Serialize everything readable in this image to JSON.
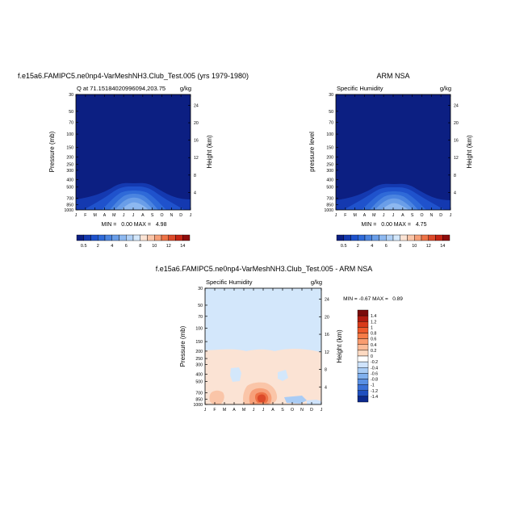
{
  "panels": [
    {
      "title": "f.e15a6.FAMIPC5.ne0np4-VarMeshNH3.Club_Test.005 (yrs 1979-1980)",
      "left_label": "Q at 71.15184020996094,203.75",
      "right_label": "g/kg",
      "ylabel_left": "Pressure (mb)",
      "ylabel_right": "Height (km)",
      "stats": "MIN =   0.00 MAX =   4.98"
    },
    {
      "title": "ARM NSA",
      "left_label": "Specific Humidity",
      "right_label": "g/kg",
      "ylabel_left": "pressure level",
      "ylabel_right": "Height (km)",
      "stats": "MIN =   0.00 MAX =   4.75"
    },
    {
      "title": "f.e15a6.FAMIPC5.ne0np4-VarMeshNH3.Club_Test.005 - ARM NSA",
      "left_label": "Specific Humidity",
      "right_label": "g/kg",
      "ylabel_left": "Pressure (mb)",
      "ylabel_right": "Height (km)",
      "stats": "MIN = -0.67 MAX =   0.89"
    }
  ],
  "chart_data": [
    {
      "type": "heatmap",
      "title": "f.e15a6.FAMIPC5.ne0np4-VarMeshNH3.Club_Test.005 (yrs 1979-1980)",
      "x": [
        "J",
        "F",
        "M",
        "A",
        "M",
        "J",
        "J",
        "A",
        "S",
        "O",
        "N",
        "D",
        "J"
      ],
      "pressure_ticks": [
        30,
        50,
        70,
        100,
        150,
        200,
        250,
        300,
        400,
        500,
        700,
        850,
        1000
      ],
      "height_ticks": [
        4,
        8,
        12,
        16,
        20,
        24
      ],
      "colorbar_labels": [
        "0.5",
        "2",
        "4",
        "6",
        "8",
        "10",
        "12",
        "14"
      ],
      "colors": [
        "#0c1f82",
        "#1439b0",
        "#1f52cc",
        "#2f6ad8",
        "#4a84e0",
        "#6a9ee8",
        "#8db8f0",
        "#b0d0f6",
        "#d3e7fb",
        "#fbe3d4",
        "#fac5a8",
        "#f7a079",
        "#ee7347",
        "#dc4a2a",
        "#c42414",
        "#8e0c0c"
      ],
      "month_max_gkg": [
        1.4,
        1.4,
        1.4,
        1.5,
        2.2,
        3.3,
        4.9,
        4.3,
        3.1,
        2.0,
        1.5,
        1.4,
        1.4
      ]
    },
    {
      "type": "heatmap",
      "title": "ARM NSA",
      "x": [
        "J",
        "F",
        "M",
        "A",
        "M",
        "J",
        "J",
        "A",
        "S",
        "O",
        "N",
        "D",
        "J"
      ],
      "pressure_ticks": [
        30,
        50,
        70,
        100,
        150,
        200,
        250,
        300,
        400,
        500,
        700,
        850,
        1000
      ],
      "height_ticks": [
        4,
        8,
        12,
        16,
        20,
        24
      ],
      "colorbar_labels": [
        "0.5",
        "2",
        "4",
        "6",
        "8",
        "10",
        "12",
        "14"
      ],
      "month_max_gkg": [
        1.3,
        1.3,
        1.4,
        1.5,
        2.2,
        3.2,
        4.7,
        4.2,
        3.0,
        2.0,
        1.5,
        1.3,
        1.3
      ]
    },
    {
      "type": "heatmap",
      "title": "f.e15a6.FAMIPC5.ne0np4-VarMeshNH3.Club_Test.005 - ARM NSA",
      "x": [
        "J",
        "F",
        "M",
        "A",
        "M",
        "J",
        "J",
        "A",
        "S",
        "O",
        "N",
        "D",
        "J"
      ],
      "pressure_ticks": [
        30,
        50,
        70,
        100,
        150,
        200,
        250,
        300,
        400,
        500,
        700,
        850,
        1000
      ],
      "height_ticks": [
        4,
        8,
        12,
        16,
        20,
        24
      ],
      "colorbar_labels": [
        "1.4",
        "1.2",
        "1",
        "0.8",
        "0.6",
        "0.4",
        "0.2",
        "0",
        "-0.2",
        "-0.4",
        "-0.6",
        "-0.8",
        "-1",
        "-1.2",
        "-1.4"
      ],
      "colors": [
        "#7a0a0a",
        "#b01a10",
        "#d83a1a",
        "#ee5a2c",
        "#f67c48",
        "#f99c70",
        "#fbbb98",
        "#fddac2",
        "#ffffff",
        "#cfe3fb",
        "#a9ccf5",
        "#80b0ee",
        "#5a90e4",
        "#3a70d6",
        "#1f4fc0",
        "#0c2a8e"
      ],
      "diff_min": -0.67,
      "diff_max": 0.89
    }
  ]
}
